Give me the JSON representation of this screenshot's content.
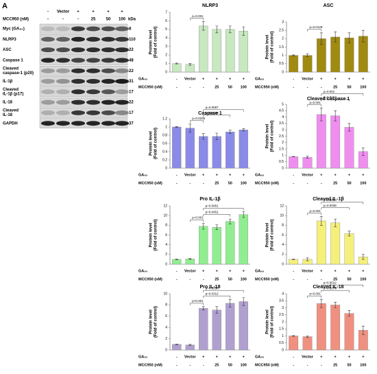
{
  "panel_label": "A",
  "blot": {
    "header": [
      "-",
      "Vector",
      "+",
      "+",
      "+",
      "+"
    ],
    "header2_label": "MCC950 (nM)",
    "header2": [
      "-",
      "-",
      "-",
      "25",
      "50",
      "100"
    ],
    "unit": "kDa",
    "rows": [
      {
        "label": [
          "Myc (GA₈₀)"
        ],
        "kda": "8"
      },
      {
        "label": [
          "NLRP3"
        ],
        "kda": "110"
      },
      {
        "label": [
          "ASC"
        ],
        "kda": "22"
      },
      {
        "label": [
          "Caspase 1"
        ],
        "kda": "48"
      },
      {
        "label": [
          "Cleaved",
          "caspase-1 (p20)"
        ],
        "kda": "22"
      },
      {
        "label": [
          "IL-1β"
        ],
        "kda": "31"
      },
      {
        "label": [
          "Cleaved",
          "IL-1β (p17)"
        ],
        "kda": "17"
      },
      {
        "label": [
          "IL-18"
        ],
        "kda": "22"
      },
      {
        "label": [
          "Cleaved",
          "IL-18"
        ],
        "kda": "17"
      },
      {
        "label": [
          "GAPDH"
        ],
        "kda": "37"
      }
    ]
  },
  "chart_data": [
    {
      "type": "bar",
      "title": "NLRP3",
      "ylabel": [
        "Protein level",
        "(Fold of control)"
      ],
      "row_labels": [
        "GA₈₀",
        "MCC950 (nM)"
      ],
      "categories": [
        "-",
        "Vector",
        "+",
        "+",
        "+",
        "+"
      ],
      "categories2": [
        "-",
        "-",
        "-",
        "25",
        "50",
        "100"
      ],
      "values": [
        1,
        0.9,
        5.4,
        5.0,
        5.0,
        4.8
      ],
      "errors": [
        0.05,
        0.1,
        0.5,
        0.4,
        0.4,
        0.5
      ],
      "color": "#c8e8c0",
      "ylim": [
        0,
        7
      ],
      "yticks": [
        0,
        1,
        2,
        3,
        4,
        5,
        6,
        7
      ],
      "annotations": [
        "p=0.001"
      ]
    },
    {
      "type": "bar",
      "title": "ASC",
      "ylabel": [
        "Protein level",
        "(Fold of control)"
      ],
      "row_labels": [
        "GA₈₀",
        "MCC950 (nM)"
      ],
      "categories": [
        "-",
        "Vector",
        "+",
        "+",
        "+",
        "+"
      ],
      "categories2": [
        "-",
        "-",
        "-",
        "25",
        "50",
        "100"
      ],
      "values": [
        1,
        1,
        2.0,
        2.1,
        2.05,
        2.15
      ],
      "errors": [
        0.03,
        0.08,
        0.35,
        0.3,
        0.3,
        0.35
      ],
      "color": "#a08a10",
      "ylim": [
        0,
        3
      ],
      "yticks": [
        0,
        0.5,
        1,
        1.5,
        2,
        2.5,
        3
      ],
      "annotations": [
        "p=0.0129"
      ]
    },
    {
      "type": "bar",
      "title": "Caspase 1",
      "ylabel": [
        "Protein level",
        "(Fold of control)"
      ],
      "row_labels": [
        "GA₈₀",
        "MCC950 (nM)"
      ],
      "categories": [
        "-",
        "Vector",
        "+",
        "+",
        "+",
        "+"
      ],
      "categories2": [
        "-",
        "-",
        "-",
        "25",
        "50",
        "100"
      ],
      "values": [
        1,
        0.97,
        0.77,
        0.77,
        0.88,
        0.93
      ],
      "errors": [
        0.01,
        0.1,
        0.07,
        0.08,
        0.04,
        0.03
      ],
      "color": "#8a8ae8",
      "ylim": [
        0,
        1.2
      ],
      "yticks": [
        0,
        0.2,
        0.4,
        0.6,
        0.8,
        1,
        1.2
      ],
      "annotations": [
        "p=0.0236",
        "p=0.0285",
        "p=0.0087"
      ]
    },
    {
      "type": "bar",
      "title": "Cleaved caspase 1",
      "ylabel": [
        "Protein level",
        "(Fold of control)"
      ],
      "row_labels": [
        "GA₈₀",
        "MCC950 (nM)"
      ],
      "categories": [
        "-",
        "Vector",
        "+",
        "+",
        "+",
        "+"
      ],
      "categories2": [
        "-",
        "-",
        "-",
        "25",
        "50",
        "100"
      ],
      "values": [
        0.9,
        0.85,
        4.2,
        4.1,
        3.2,
        1.3
      ],
      "errors": [
        0.02,
        0.08,
        0.5,
        0.4,
        0.3,
        0.3
      ],
      "color": "#f08ef0",
      "ylim": [
        0,
        5
      ],
      "yticks": [
        0,
        0.5,
        1,
        1.5,
        2,
        2.5,
        3,
        3.5,
        4,
        4.5,
        5
      ],
      "annotations": [
        "p=0.001",
        "p=0.0157",
        "p=0.001"
      ]
    },
    {
      "type": "bar",
      "title": "Pro IL-1β",
      "ylabel": [
        "Protein level",
        "(Fold of control)"
      ],
      "row_labels": [
        "GA₈₀",
        "MCC950 (nM)"
      ],
      "categories": [
        "-",
        "Vector",
        "+",
        "+",
        "+",
        "+"
      ],
      "categories2": [
        "-",
        "-",
        "-",
        "25",
        "50",
        "100"
      ],
      "values": [
        1,
        1.1,
        7.8,
        7.6,
        8.8,
        10.2
      ],
      "errors": [
        0.05,
        0.1,
        0.6,
        0.5,
        0.5,
        0.6
      ],
      "color": "#90ee90",
      "ylim": [
        0,
        12
      ],
      "yticks": [
        0,
        2,
        4,
        6,
        8,
        10,
        12
      ],
      "annotations": [
        "p=0.001",
        "p=0.0451",
        "p=0.0051"
      ]
    },
    {
      "type": "bar",
      "title": "Cleaved IL-1β",
      "ylabel": [
        "Protein level",
        "(Fold of control)"
      ],
      "row_labels": [
        "GA₈₀",
        "MCC950 (nM)"
      ],
      "categories": [
        "-",
        "Vector",
        "+",
        "+",
        "+",
        "+"
      ],
      "categories2": [
        "-",
        "-",
        "-",
        "25",
        "50",
        "100"
      ],
      "values": [
        1,
        1,
        8.9,
        8.5,
        6.3,
        1.5
      ],
      "errors": [
        0.05,
        0.3,
        0.9,
        0.8,
        0.5,
        0.5
      ],
      "color": "#f5f07a",
      "ylim": [
        0,
        12
      ],
      "yticks": [
        0,
        2,
        4,
        6,
        8,
        10,
        12
      ],
      "annotations": [
        "p=0.001",
        "p=0.0039",
        "p=0.001"
      ]
    },
    {
      "type": "bar",
      "title": "Pro IL-18",
      "ylabel": [
        "Protein level",
        "(Fold of control)"
      ],
      "row_labels": [
        "GA₈₀",
        "MCC950 (nM)"
      ],
      "categories": [
        "-",
        "Vector",
        "+",
        "+",
        "+",
        "+"
      ],
      "categories2": [
        "-",
        "-",
        "-",
        "25",
        "50",
        "100"
      ],
      "values": [
        1,
        0.9,
        7.4,
        7.1,
        8.3,
        8.6
      ],
      "errors": [
        0.05,
        0.1,
        0.3,
        0.6,
        0.7,
        0.7
      ],
      "color": "#b0a0d0",
      "ylim": [
        0,
        10
      ],
      "yticks": [
        0,
        2,
        4,
        6,
        8,
        10
      ],
      "annotations": [
        "p<0.001",
        "p=0.0312",
        "p=0.0258"
      ]
    },
    {
      "type": "bar",
      "title": "Cleaved IL-18",
      "ylabel": [
        "Protein level",
        "(Fold of control)"
      ],
      "row_labels": [
        "GA₈₀",
        "MCC950 (nM)"
      ],
      "categories": [
        "-",
        "Vector",
        "+",
        "+",
        "+",
        "+"
      ],
      "categories2": [
        "-",
        "-",
        "-",
        "25",
        "50",
        "100"
      ],
      "values": [
        1,
        0.95,
        3.3,
        3.2,
        2.6,
        1.4
      ],
      "errors": [
        0.02,
        0.05,
        0.3,
        0.2,
        0.2,
        0.3
      ],
      "color": "#f09080",
      "ylim": [
        0,
        4
      ],
      "yticks": [
        0,
        0.5,
        1,
        1.5,
        2,
        2.5,
        3,
        3.5,
        4
      ],
      "annotations": [
        "p=0.001",
        "p=0.0279",
        "p=0.0012"
      ]
    }
  ]
}
